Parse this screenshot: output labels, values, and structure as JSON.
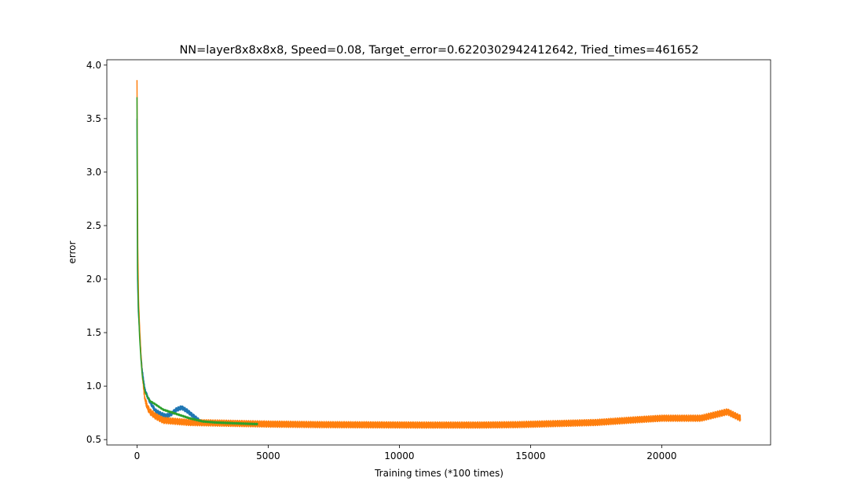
{
  "chart_data": {
    "type": "line",
    "title": "NN=layer8x8x8x8, Speed=0.08, Target_error=0.6220302942412642, Tried_times=461652",
    "xlabel": "Training times (*100 times)",
    "ylabel": "error",
    "xlim": [
      -1150,
      24150
    ],
    "ylim": [
      0.45,
      4.05
    ],
    "xticks": [
      0,
      5000,
      10000,
      15000,
      20000
    ],
    "xtick_labels": [
      "0",
      "5000",
      "10000",
      "15000",
      "20000"
    ],
    "yticks": [
      0.5,
      1.0,
      1.5,
      2.0,
      2.5,
      3.0,
      3.5,
      4.0
    ],
    "ytick_labels": [
      "0.5",
      "1.0",
      "1.5",
      "2.0",
      "2.5",
      "3.0",
      "3.5",
      "4.0"
    ],
    "grid": false,
    "legend": "none",
    "series": [
      {
        "color": "#1f77b4",
        "x": [
          0,
          20,
          50,
          100,
          150,
          200,
          300,
          400,
          500,
          700,
          900,
          1100,
          1300,
          1500,
          1700,
          1900,
          2100,
          2300,
          2500
        ],
        "y": [
          3.5,
          2.0,
          1.7,
          1.5,
          1.3,
          1.15,
          0.97,
          0.9,
          0.85,
          0.77,
          0.74,
          0.72,
          0.74,
          0.78,
          0.8,
          0.77,
          0.73,
          0.69,
          0.65
        ],
        "noise_amplitude": 0.04
      },
      {
        "color": "#ff7f0e",
        "x": [
          0,
          30,
          60,
          100,
          150,
          200,
          300,
          400,
          500,
          700,
          1000,
          1500,
          2000,
          3000,
          4000,
          5000,
          7000,
          9000,
          11000,
          13000,
          14500,
          16000,
          17500,
          19000,
          20000,
          21000,
          21500,
          22000,
          22500,
          23000
        ],
        "y": [
          3.86,
          2.3,
          1.8,
          1.55,
          1.3,
          1.1,
          0.88,
          0.8,
          0.76,
          0.72,
          0.68,
          0.67,
          0.66,
          0.655,
          0.65,
          0.645,
          0.64,
          0.638,
          0.636,
          0.636,
          0.64,
          0.65,
          0.66,
          0.685,
          0.7,
          0.7,
          0.7,
          0.73,
          0.76,
          0.7
        ],
        "noise_amplitude": 0.06
      },
      {
        "color": "#2ca02c",
        "x": [
          0,
          20,
          50,
          100,
          150,
          200,
          300,
          400,
          500,
          700,
          1000,
          1500,
          2000,
          2500,
          3000,
          3500,
          4000,
          4600
        ],
        "y": [
          3.7,
          2.1,
          1.75,
          1.45,
          1.25,
          1.1,
          0.95,
          0.9,
          0.86,
          0.83,
          0.78,
          0.74,
          0.7,
          0.67,
          0.66,
          0.655,
          0.65,
          0.645
        ],
        "noise_amplitude": 0.015
      }
    ]
  }
}
